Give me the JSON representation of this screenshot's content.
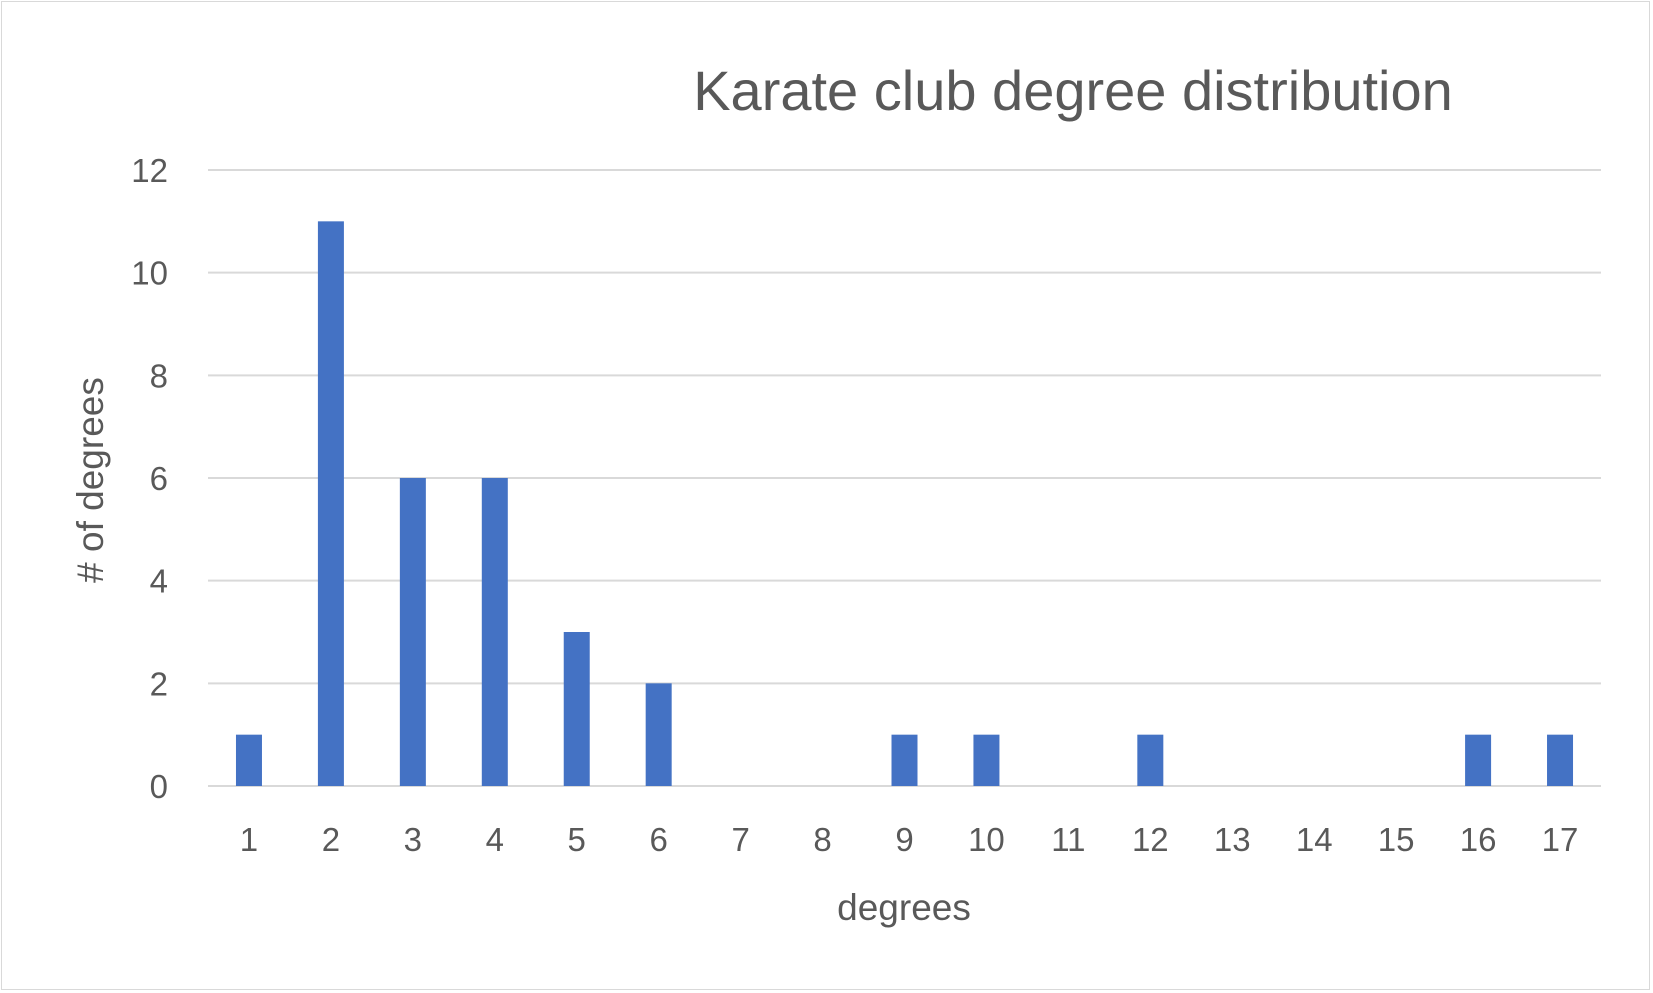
{
  "chart_data": {
    "type": "bar",
    "title": "Karate club degree distribution",
    "xlabel": "degrees",
    "ylabel": "# of degrees",
    "categories": [
      "1",
      "2",
      "3",
      "4",
      "5",
      "6",
      "7",
      "8",
      "9",
      "10",
      "11",
      "12",
      "13",
      "14",
      "15",
      "16",
      "17"
    ],
    "values": [
      1,
      11,
      6,
      6,
      3,
      2,
      0,
      0,
      1,
      1,
      0,
      1,
      0,
      0,
      0,
      1,
      1
    ],
    "ylim": [
      0,
      12
    ],
    "yticks": [
      0,
      2,
      4,
      6,
      8,
      10,
      12
    ],
    "grid": true,
    "legend": "none",
    "bar_color": "#4472c4",
    "grid_color": "#d9d9d9",
    "text_color": "#595959"
  }
}
